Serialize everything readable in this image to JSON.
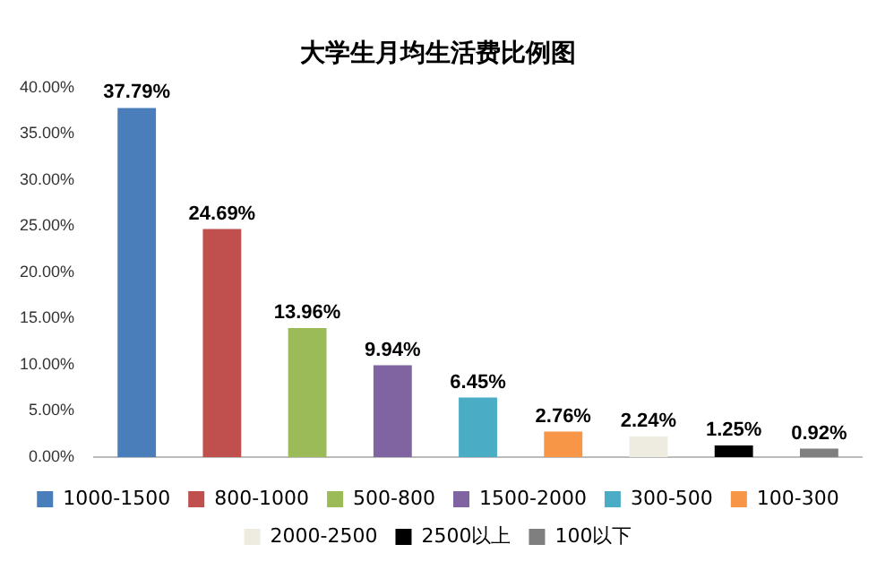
{
  "chart_data": {
    "type": "bar",
    "title": "大学生月均生活费比例图",
    "categories": [
      null,
      null,
      null,
      null,
      null,
      null,
      null,
      null,
      null
    ],
    "series": [
      {
        "name": "1000-1500",
        "color": "#4a7ebb",
        "values": [
          37.79,
          null,
          null,
          null,
          null,
          null,
          null,
          null,
          null
        ],
        "value_labels": [
          "37.79%",
          null,
          null,
          null,
          null,
          null,
          null,
          null,
          null
        ]
      },
      {
        "name": "800-1000",
        "color": "#c0504d",
        "values": [
          null,
          24.69,
          null,
          null,
          null,
          null,
          null,
          null,
          null
        ],
        "value_labels": [
          null,
          "24.69%",
          null,
          null,
          null,
          null,
          null,
          null,
          null
        ]
      },
      {
        "name": "500-800",
        "color": "#9bbb59",
        "values": [
          null,
          null,
          13.96,
          null,
          null,
          null,
          null,
          null,
          null
        ],
        "value_labels": [
          null,
          null,
          "13.96%",
          null,
          null,
          null,
          null,
          null,
          null
        ]
      },
      {
        "name": "1500-2000",
        "color": "#8064a2",
        "values": [
          null,
          null,
          null,
          9.94,
          null,
          null,
          null,
          null,
          null
        ],
        "value_labels": [
          null,
          null,
          null,
          "9.94%",
          null,
          null,
          null,
          null,
          null
        ]
      },
      {
        "name": "300-500",
        "color": "#4bacc6",
        "values": [
          null,
          null,
          null,
          null,
          6.45,
          null,
          null,
          null,
          null
        ],
        "value_labels": [
          null,
          null,
          null,
          null,
          "6.45%",
          null,
          null,
          null,
          null
        ]
      },
      {
        "name": "100-300",
        "color": "#f79646",
        "values": [
          null,
          null,
          null,
          null,
          null,
          2.76,
          null,
          null,
          null
        ],
        "value_labels": [
          null,
          null,
          null,
          null,
          null,
          "2.76%",
          null,
          null,
          null
        ]
      },
      {
        "name": "2000-2500",
        "color": "#eeece1",
        "values": [
          null,
          null,
          null,
          null,
          null,
          null,
          2.24,
          null,
          null
        ],
        "value_labels": [
          null,
          null,
          null,
          null,
          null,
          null,
          "2.24%",
          null,
          null
        ]
      },
      {
        "name": "2500以上",
        "color": "#000000",
        "values": [
          null,
          null,
          null,
          null,
          null,
          null,
          null,
          1.25,
          null
        ],
        "value_labels": [
          null,
          null,
          null,
          null,
          null,
          null,
          null,
          "1.25%",
          null
        ]
      },
      {
        "name": "100以下",
        "color": "#7f7f7f",
        "values": [
          null,
          null,
          null,
          null,
          null,
          null,
          null,
          null,
          0.92
        ],
        "value_labels": [
          null,
          null,
          null,
          null,
          null,
          null,
          null,
          null,
          "0.92%"
        ]
      }
    ],
    "ylim": [
      0,
      40
    ],
    "yticks": [
      {
        "value": 0,
        "label": "0.00%"
      },
      {
        "value": 5,
        "label": "5.00%"
      },
      {
        "value": 10,
        "label": "10.00%"
      },
      {
        "value": 15,
        "label": "15.00%"
      },
      {
        "value": 20,
        "label": "20.00%"
      },
      {
        "value": 25,
        "label": "25.00%"
      },
      {
        "value": 30,
        "label": "30.00%"
      },
      {
        "value": 35,
        "label": "35.00%"
      },
      {
        "value": 40,
        "label": "40.00%"
      }
    ],
    "grid": false,
    "legend": "bottom",
    "tick_labels": "y"
  }
}
